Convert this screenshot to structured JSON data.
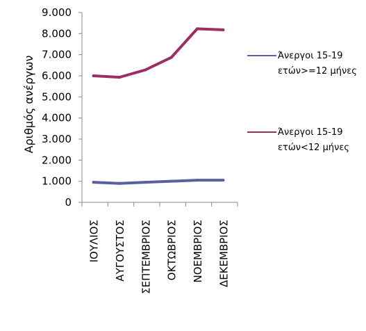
{
  "chart_data": {
    "type": "line",
    "categories": [
      "ΙΟΥΛΙΟΣ",
      "ΑΥΓΟΥΣΤΟΣ",
      "ΣΕΠΤΕΜΒΡΙΟΣ",
      "ΟΚΤΩΒΡΙΟΣ",
      "ΝΟΕΜΒΡΙΟΣ",
      "ΔΕΚΕΜΒΡΙΟΣ"
    ],
    "series": [
      {
        "name_lines": [
          "Άνεργοι 15-19",
          "ετών>=12 μήνες"
        ],
        "values": [
          950,
          900,
          950,
          1000,
          1050,
          1050
        ],
        "color": "#5b5fa0"
      },
      {
        "name_lines": [
          "Άνεργοι 15-19",
          "ετών<12 μήνες"
        ],
        "values": [
          6000,
          5930,
          6280,
          6870,
          8230,
          8180
        ],
        "color": "#9b2f63"
      }
    ],
    "ylabel": "Αριθμός ανέργων",
    "yticks": [
      "0",
      "1.000",
      "2.000",
      "3.000",
      "4.000",
      "5.000",
      "6.000",
      "7.000",
      "8.000",
      "9.000"
    ],
    "ylim": [
      0,
      9000
    ],
    "grid": false,
    "legend_position": "right"
  }
}
